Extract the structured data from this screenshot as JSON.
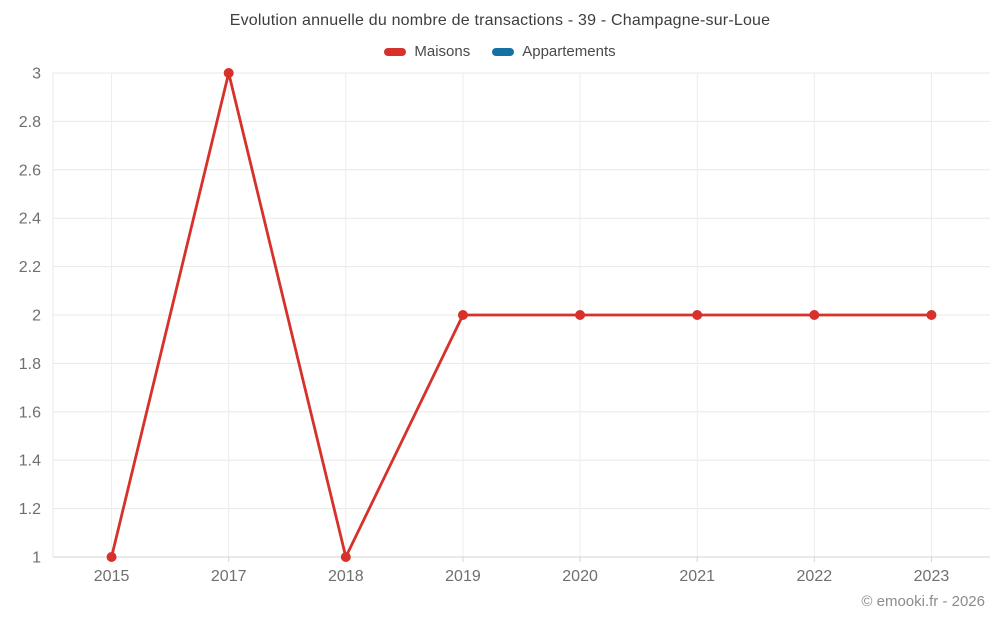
{
  "chart_data": {
    "type": "line",
    "title": "Evolution annuelle du nombre de transactions - 39 - Champagne-sur-Loue",
    "categories": [
      "2015",
      "2017",
      "2018",
      "2019",
      "2020",
      "2021",
      "2022",
      "2023"
    ],
    "series": [
      {
        "name": "Maisons",
        "color": "#d6312b",
        "values": [
          1,
          3,
          1,
          2,
          2,
          2,
          2,
          2
        ]
      },
      {
        "name": "Appartements",
        "color": "#1770a4",
        "values": []
      }
    ],
    "xlabel": "",
    "ylabel": "",
    "ylim": [
      1,
      3
    ],
    "ytick_step": 0.2,
    "ytick_labels": [
      "3",
      "2.8",
      "2.6",
      "2.4",
      "2.2",
      "2",
      "1.8",
      "1.6",
      "1.4",
      "1.2",
      "1"
    ],
    "grid": true,
    "legend_position": "top",
    "marker_radius": 5,
    "line_width": 2.8
  },
  "footer": {
    "copyright": "© emooki.fr - 2026"
  },
  "colors": {
    "background": "#ffffff",
    "gridline": "#e8e8e8",
    "vertical_gridline": "#ededed",
    "axis_line": "#d4d4d4",
    "title_text": "#3d3d3d",
    "legend_text": "#4a4a4a",
    "axis_label_text": "#6f6f6f",
    "copyright_text": "#8c8c8c"
  }
}
